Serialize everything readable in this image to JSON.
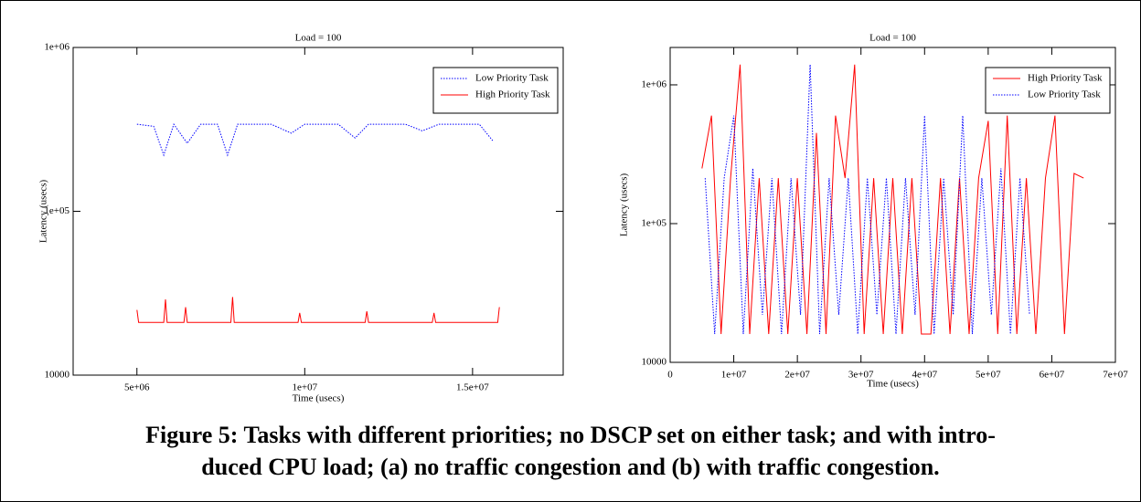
{
  "chart_data": [
    {
      "type": "line",
      "title": "Load = 100",
      "xlabel": "Time (usecs)",
      "ylabel": "Latency (usecs)",
      "xlim": [
        3100000,
        17700000
      ],
      "xticks": [
        {
          "value": 5000000,
          "label": "5e+06"
        },
        {
          "value": 10000000,
          "label": "1e+07"
        },
        {
          "value": 15000000,
          "label": "1.5e+07"
        }
      ],
      "ylim": [
        10000,
        1000000
      ],
      "log_y": true,
      "yticks": [
        10000,
        {
          "value": 100000,
          "label": "1e+05"
        },
        {
          "value": 1000000,
          "label": "1e+06"
        }
      ],
      "legend": "upper right",
      "series": [
        {
          "name": "Low Priority Task",
          "color": "#0000ff",
          "linestyle": "dotted",
          "x": [
            5000000,
            5500000,
            5800000,
            6100000,
            6500000,
            6900000,
            7400000,
            7700000,
            8000000,
            9000000,
            9600000,
            10000000,
            11000000,
            11500000,
            11900000,
            13000000,
            13500000,
            14000000,
            15200000,
            15600000
          ],
          "values": [
            340000,
            330000,
            220000,
            340000,
            260000,
            340000,
            340000,
            220000,
            340000,
            340000,
            300000,
            340000,
            340000,
            280000,
            340000,
            340000,
            310000,
            340000,
            340000,
            270000
          ]
        },
        {
          "name": "High Priority Task",
          "color": "#ff0000",
          "linestyle": "solid",
          "x": [
            5000000,
            5050000,
            5800000,
            5850000,
            5900000,
            6400000,
            6450000,
            6500000,
            7800000,
            7850000,
            7900000,
            9800000,
            9850000,
            9900000,
            11800000,
            11850000,
            11900000,
            13800000,
            13850000,
            13900000,
            15750000,
            15800000
          ],
          "values": [
            25000,
            21000,
            21000,
            29000,
            21000,
            21000,
            26000,
            21000,
            21000,
            30000,
            21000,
            21000,
            24000,
            21000,
            21000,
            24500,
            21000,
            21000,
            24000,
            21000,
            21000,
            26000
          ]
        }
      ]
    },
    {
      "type": "line",
      "title": "Load = 100",
      "xlabel": "Time (usecs)",
      "ylabel": "Latency (usecs)",
      "xlim": [
        0,
        70000000
      ],
      "xticks": [
        0,
        {
          "value": 10000000,
          "label": "1e+07"
        },
        {
          "value": 20000000,
          "label": "2e+07"
        },
        {
          "value": 30000000,
          "label": "3e+07"
        },
        {
          "value": 40000000,
          "label": "4e+07"
        },
        {
          "value": 50000000,
          "label": "5e+07"
        },
        {
          "value": 60000000,
          "label": "6e+07"
        },
        {
          "value": 70000000,
          "label": "7e+07"
        }
      ],
      "ylim": [
        10000,
        1860000
      ],
      "log_y": true,
      "yticks": [
        10000,
        {
          "value": 100000,
          "label": "1e+05"
        },
        {
          "value": 1000000,
          "label": "1e+06"
        }
      ],
      "legend": "upper right",
      "series": [
        {
          "name": "High Priority Task",
          "color": "#ff0000",
          "linestyle": "solid",
          "x": [
            5000000,
            6500000,
            8000000,
            9500000,
            11000000,
            12500000,
            14000000,
            15500000,
            17000000,
            18500000,
            20000000,
            21500000,
            23000000,
            24500000,
            26000000,
            27500000,
            29000000,
            30500000,
            32000000,
            33500000,
            35000000,
            36500000,
            38000000,
            39500000,
            41000000,
            42500000,
            44000000,
            45500000,
            47000000,
            48500000,
            50000000,
            51500000,
            53000000,
            54500000,
            56000000,
            57500000,
            59000000,
            60500000,
            62000000,
            63500000,
            65000000
          ],
          "values": [
            250000,
            600000,
            16000,
            213000,
            1400000,
            16000,
            213000,
            16000,
            213000,
            16000,
            213000,
            16000,
            450000,
            16000,
            600000,
            213000,
            1400000,
            16000,
            213000,
            16000,
            213000,
            16000,
            213000,
            16000,
            16000,
            213000,
            16000,
            213000,
            16000,
            213000,
            550000,
            16000,
            600000,
            16000,
            213000,
            16000,
            213000,
            600000,
            16000,
            230000,
            213000
          ]
        },
        {
          "name": "Low Priority Task",
          "color": "#0000ff",
          "linestyle": "dotted",
          "x": [
            5500000,
            7000000,
            8500000,
            10000000,
            11500000,
            13000000,
            14500000,
            16000000,
            17500000,
            19000000,
            20500000,
            22000000,
            23500000,
            25000000,
            26500000,
            28000000,
            29500000,
            31000000,
            32500000,
            34000000,
            35500000,
            37000000,
            38500000,
            40000000,
            41500000,
            43000000,
            44500000,
            46000000,
            47500000,
            49000000,
            50500000,
            52000000,
            53500000,
            55000000,
            56500000
          ],
          "values": [
            213000,
            16000,
            213000,
            600000,
            16000,
            250000,
            22000,
            213000,
            16000,
            213000,
            22000,
            1400000,
            16000,
            213000,
            22000,
            213000,
            16000,
            213000,
            22000,
            213000,
            16000,
            213000,
            22000,
            600000,
            16000,
            213000,
            22000,
            600000,
            16000,
            213000,
            22000,
            250000,
            16000,
            213000,
            22000
          ]
        }
      ]
    }
  ],
  "caption": [
    "Figure 5: Tasks with different priorities; no DSCP set on either task; and with intro-",
    "duced CPU load; (a) no traffic congestion and (b) with traffic congestion."
  ]
}
